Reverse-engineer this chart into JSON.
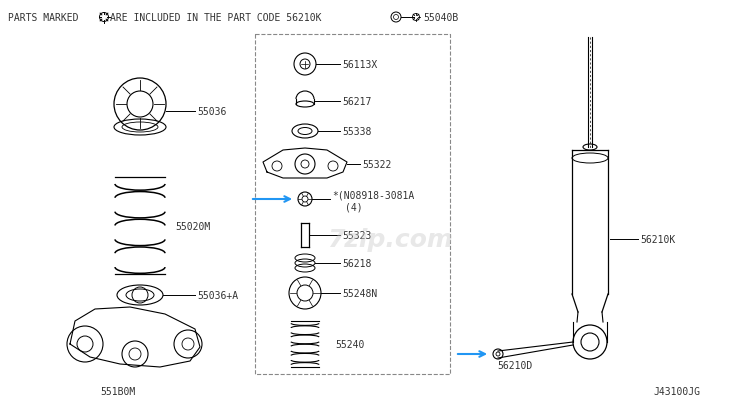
{
  "bg_color": "#ffffff",
  "line_color": "#000000",
  "arrow_color": "#2196F3",
  "text_color": "#333333",
  "watermark": "7zip.com",
  "header_text": "PARTS MARKED  ARE INCLUDED IN THE PART CODE 56210K",
  "footer_text": "J43100JG"
}
